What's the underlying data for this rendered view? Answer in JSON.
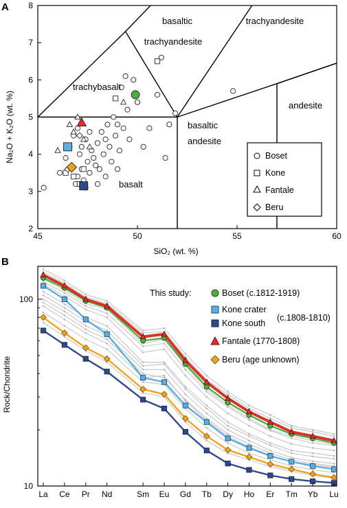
{
  "chart_data": [
    {
      "type": "scatter",
      "panel_label": "A",
      "xlabel": "SiO₂ (wt. %)",
      "ylabel": "Na₂O + K₂O (wt. %)",
      "xlim": [
        45,
        60
      ],
      "ylim": [
        2,
        8
      ],
      "x_ticks": [
        "45",
        "50",
        "55",
        "60"
      ],
      "y_ticks": [
        "2",
        "3",
        "4",
        "5",
        "6",
        "7",
        "8"
      ],
      "fields": [
        "basaltic trachyandesite",
        "trachyandesite",
        "trachybasalt",
        "andesite",
        "basaltic andesite",
        "basalt"
      ],
      "legend": [
        "Boset",
        "Kone",
        "Fantale",
        "Beru"
      ],
      "series": [
        {
          "name": "Boset",
          "marker": "circle",
          "points": [
            [
              45.3,
              3.1
            ],
            [
              46.1,
              3.5
            ],
            [
              46.4,
              3.9
            ],
            [
              46.6,
              4.2
            ],
            [
              46.8,
              4.5
            ],
            [
              47.0,
              4.7
            ],
            [
              47.1,
              4.0
            ],
            [
              47.2,
              3.6
            ],
            [
              47.3,
              3.3
            ],
            [
              47.4,
              4.4
            ],
            [
              47.5,
              3.8
            ],
            [
              47.6,
              3.5
            ],
            [
              47.7,
              4.1
            ],
            [
              47.8,
              3.9
            ],
            [
              47.9,
              3.7
            ],
            [
              48.0,
              4.3
            ],
            [
              48.1,
              3.6
            ],
            [
              48.2,
              4.6
            ],
            [
              48.3,
              4.0
            ],
            [
              48.4,
              3.4
            ],
            [
              48.5,
              4.8
            ],
            [
              48.6,
              4.2
            ],
            [
              48.7,
              3.8
            ],
            [
              48.8,
              5.0
            ],
            [
              48.9,
              4.5
            ],
            [
              49.0,
              3.6
            ],
            [
              49.1,
              4.1
            ],
            [
              49.2,
              5.8
            ],
            [
              49.3,
              4.7
            ],
            [
              49.4,
              6.1
            ],
            [
              49.5,
              5.2
            ],
            [
              49.6,
              4.4
            ],
            [
              49.8,
              6.0
            ],
            [
              50.0,
              5.4
            ],
            [
              50.3,
              4.2
            ],
            [
              50.6,
              4.7
            ],
            [
              51.0,
              5.6
            ],
            [
              51.2,
              6.6
            ],
            [
              51.4,
              3.9
            ],
            [
              51.6,
              4.8
            ],
            [
              51.9,
              5.1
            ],
            [
              54.8,
              5.7
            ],
            [
              46.9,
              3.2
            ],
            [
              47.2,
              4.2
            ],
            [
              47.6,
              4.6
            ],
            [
              48.0,
              3.2
            ],
            [
              48.4,
              4.4
            ],
            [
              49.0,
              4.8
            ],
            [
              47.0,
              3.4
            ],
            [
              47.4,
              3.1
            ]
          ]
        },
        {
          "name": "Kone",
          "marker": "square",
          "points": [
            [
              46.4,
              3.5
            ],
            [
              46.8,
              3.4
            ],
            [
              47.1,
              3.2
            ],
            [
              48.9,
              5.5
            ],
            [
              51.0,
              6.5
            ],
            [
              47.3,
              3.6
            ]
          ]
        },
        {
          "name": "Fantale",
          "marker": "triangle",
          "points": [
            [
              46.0,
              4.1
            ],
            [
              46.6,
              4.8
            ],
            [
              47.0,
              5.0
            ],
            [
              47.3,
              4.4
            ],
            [
              47.6,
              4.2
            ],
            [
              49.3,
              5.4
            ],
            [
              46.8,
              4.6
            ]
          ]
        },
        {
          "name": "Beru",
          "marker": "diamond",
          "points": [
            [
              46.5,
              3.6
            ],
            [
              47.1,
              4.5
            ]
          ]
        }
      ],
      "highlighted": [
        {
          "name": "Boset",
          "x": 49.9,
          "y": 5.6,
          "color": "#4caf3c"
        },
        {
          "name": "Kone crater",
          "x": 46.5,
          "y": 4.2,
          "color": "#5aafe0"
        },
        {
          "name": "Kone south",
          "x": 47.3,
          "y": 3.15,
          "color": "#2e4a8a"
        },
        {
          "name": "Fantale",
          "x": 47.2,
          "y": 4.85,
          "color": "#d93228"
        },
        {
          "name": "Beru",
          "x": 46.7,
          "y": 3.65,
          "color": "#f3a21e"
        }
      ]
    },
    {
      "type": "line",
      "panel_label": "B",
      "ylabel": "Rock/Chondrite",
      "yscale": "log",
      "ylim": [
        10,
        150
      ],
      "y_ticks": [
        "10",
        "100"
      ],
      "x": [
        "La",
        "Ce",
        "Pr",
        "Nd",
        "Sm",
        "Eu",
        "Gd",
        "Tb",
        "Dy",
        "Ho",
        "Er",
        "Tm",
        "Yb",
        "Lu"
      ],
      "legend_heading": "This study:",
      "kone_age": "(c.1808-1810)",
      "series": [
        {
          "name": "Boset (c.1812-1919)",
          "color": "#4caf3c",
          "marker": "circle",
          "values": [
            130,
            115,
            98,
            90,
            60,
            62,
            45,
            34,
            28,
            24,
            21,
            19,
            18,
            17
          ]
        },
        {
          "name": "Kone crater",
          "color": "#5aafe0",
          "marker": "square",
          "values": [
            118,
            100,
            78,
            65,
            38,
            36,
            27,
            22,
            18,
            16,
            14.5,
            13.5,
            12.8,
            12.3
          ]
        },
        {
          "name": "Kone south",
          "color": "#2e4a8a",
          "marker": "square",
          "values": [
            68,
            57,
            48,
            41,
            29,
            26,
            19.5,
            15.5,
            13.2,
            12.2,
            11.4,
            10.9,
            10.6,
            10.4
          ]
        },
        {
          "name": "Fantale (1770-1808)",
          "color": "#d93228",
          "marker": "triangle",
          "values": [
            135,
            118,
            100,
            92,
            63,
            65,
            47,
            36,
            29.5,
            25,
            22,
            19.5,
            18.5,
            17.5
          ]
        },
        {
          "name": "Beru (age unknown)",
          "color": "#f3a21e",
          "marker": "diamond",
          "values": [
            80,
            66,
            55,
            48,
            33,
            31,
            23,
            18.5,
            15.6,
            14.3,
            13.1,
            12.3,
            11.6,
            11.1
          ]
        }
      ],
      "background_series": [
        [
          140,
          122,
          103,
          95,
          66,
          67,
          49,
          37,
          31,
          26,
          23,
          20.5,
          19.5,
          18.5
        ],
        [
          128,
          112,
          95,
          88,
          58,
          61,
          44,
          33,
          27,
          23,
          20,
          18.5,
          17.5,
          16.8
        ],
        [
          145,
          126,
          106,
          98,
          68,
          70,
          51,
          39,
          32,
          27,
          24,
          21,
          20,
          19
        ],
        [
          124,
          108,
          92,
          84,
          56,
          58,
          42,
          32,
          26.5,
          22.5,
          19.8,
          18,
          17,
          16.5
        ],
        [
          110,
          94,
          80,
          72,
          46,
          46,
          34,
          27,
          22,
          19,
          17,
          15.5,
          15,
          14.5
        ],
        [
          100,
          86,
          72,
          64,
          42,
          42,
          31,
          24.5,
          20,
          17.5,
          15.5,
          14.2,
          13.6,
          13.2
        ],
        [
          92,
          78,
          66,
          58,
          38,
          39,
          28.5,
          22.5,
          18.5,
          16.2,
          14.6,
          13.5,
          13,
          12.6
        ],
        [
          85,
          72,
          61,
          54,
          36,
          35,
          26,
          20.5,
          17,
          15,
          13.8,
          12.8,
          12.2,
          11.8
        ],
        [
          75,
          63,
          53,
          46,
          31.5,
          30,
          22,
          17.5,
          15,
          13.8,
          12.7,
          12,
          11.4,
          11
        ],
        [
          105,
          90,
          76,
          68,
          44,
          45,
          33,
          26,
          21,
          18.5,
          16.5,
          15,
          14.4,
          14
        ],
        [
          120,
          104,
          88,
          80,
          52,
          54,
          39,
          30,
          24.5,
          21,
          18.5,
          16.8,
          16,
          15.5
        ],
        [
          96,
          82,
          69,
          61,
          40,
          38,
          29,
          23,
          19,
          16.8,
          15,
          13.8,
          13.2,
          12.8
        ]
      ]
    }
  ]
}
